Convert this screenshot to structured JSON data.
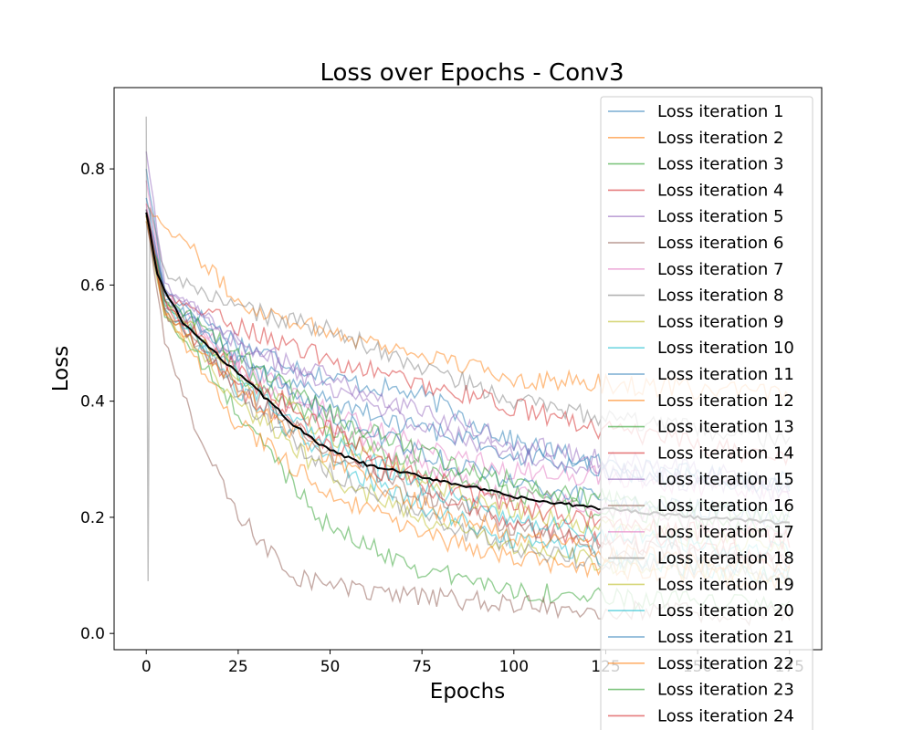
{
  "chart_data": {
    "type": "line",
    "title": "Loss over Epochs - Conv3",
    "xlabel": "Epochs",
    "ylabel": "Loss",
    "xlim": [
      -8.75,
      183.75
    ],
    "ylim": [
      -0.028,
      0.94
    ],
    "xticks": [
      0,
      25,
      50,
      75,
      100,
      125,
      150,
      175
    ],
    "yticks": [
      0.0,
      0.2,
      0.4,
      0.6,
      0.8
    ],
    "epochs": 175,
    "legend_position": "top-right",
    "grid": false,
    "series": [
      {
        "name": "Loss iteration 1",
        "color": "#1f77b4",
        "values": [
          [
            0,
            0.8
          ],
          [
            5,
            0.59
          ],
          [
            25,
            0.5
          ],
          [
            50,
            0.44
          ],
          [
            75,
            0.41
          ],
          [
            100,
            0.33
          ],
          [
            125,
            0.29
          ],
          [
            175,
            0.26
          ]
        ]
      },
      {
        "name": "Loss iteration 2",
        "color": "#ff7f0e",
        "values": [
          [
            0,
            0.74
          ],
          [
            5,
            0.7
          ],
          [
            10,
            0.68
          ],
          [
            25,
            0.57
          ],
          [
            50,
            0.52
          ],
          [
            75,
            0.48
          ],
          [
            100,
            0.44
          ],
          [
            125,
            0.43
          ],
          [
            175,
            0.41
          ]
        ]
      },
      {
        "name": "Loss iteration 3",
        "color": "#2ca02c",
        "values": [
          [
            0,
            0.72
          ],
          [
            5,
            0.55
          ],
          [
            25,
            0.38
          ],
          [
            50,
            0.18
          ],
          [
            75,
            0.11
          ],
          [
            100,
            0.075
          ],
          [
            125,
            0.06
          ],
          [
            175,
            0.05
          ]
        ]
      },
      {
        "name": "Loss iteration 4",
        "color": "#d62728",
        "values": [
          [
            0,
            0.72
          ],
          [
            5,
            0.58
          ],
          [
            25,
            0.53
          ],
          [
            50,
            0.47
          ],
          [
            75,
            0.43
          ],
          [
            100,
            0.39
          ],
          [
            125,
            0.35
          ],
          [
            175,
            0.3
          ]
        ]
      },
      {
        "name": "Loss iteration 5",
        "color": "#9467bd",
        "values": [
          [
            0,
            0.83
          ],
          [
            5,
            0.6
          ],
          [
            25,
            0.5
          ],
          [
            50,
            0.44
          ],
          [
            75,
            0.38
          ],
          [
            100,
            0.33
          ],
          [
            125,
            0.3
          ],
          [
            175,
            0.26
          ]
        ]
      },
      {
        "name": "Loss iteration 6",
        "color": "#8c564b",
        "values": [
          [
            0,
            0.72
          ],
          [
            5,
            0.5
          ],
          [
            15,
            0.33
          ],
          [
            25,
            0.2
          ],
          [
            40,
            0.1
          ],
          [
            60,
            0.07
          ],
          [
            100,
            0.05
          ],
          [
            125,
            0.04
          ],
          [
            175,
            0.03
          ]
        ]
      },
      {
        "name": "Loss iteration 7",
        "color": "#e377c2",
        "values": [
          [
            0,
            0.78
          ],
          [
            5,
            0.58
          ],
          [
            25,
            0.47
          ],
          [
            50,
            0.38
          ],
          [
            75,
            0.32
          ],
          [
            100,
            0.28
          ],
          [
            125,
            0.27
          ],
          [
            175,
            0.24
          ]
        ]
      },
      {
        "name": "Loss iteration 8",
        "color": "#7f7f7f",
        "values": [
          [
            0,
            0.89
          ],
          [
            0.5,
            0.09
          ],
          [
            1,
            0.73
          ],
          [
            5,
            0.62
          ],
          [
            25,
            0.56
          ],
          [
            50,
            0.52
          ],
          [
            75,
            0.46
          ],
          [
            100,
            0.4
          ],
          [
            125,
            0.37
          ],
          [
            175,
            0.33
          ]
        ]
      },
      {
        "name": "Loss iteration 9",
        "color": "#bcbd22",
        "values": [
          [
            0,
            0.71
          ],
          [
            5,
            0.55
          ],
          [
            25,
            0.4
          ],
          [
            50,
            0.27
          ],
          [
            75,
            0.2
          ],
          [
            100,
            0.15
          ],
          [
            125,
            0.12
          ],
          [
            175,
            0.1
          ]
        ]
      },
      {
        "name": "Loss iteration 10",
        "color": "#17becf",
        "values": [
          [
            0,
            0.73
          ],
          [
            5,
            0.56
          ],
          [
            25,
            0.42
          ],
          [
            50,
            0.3
          ],
          [
            75,
            0.22
          ],
          [
            100,
            0.16
          ],
          [
            125,
            0.13
          ],
          [
            175,
            0.1
          ]
        ]
      },
      {
        "name": "Loss iteration 11",
        "color": "#1f77b4",
        "values": [
          [
            0,
            0.75
          ],
          [
            5,
            0.58
          ],
          [
            25,
            0.47
          ],
          [
            50,
            0.4
          ],
          [
            75,
            0.35
          ],
          [
            100,
            0.31
          ],
          [
            125,
            0.28
          ],
          [
            175,
            0.25
          ]
        ]
      },
      {
        "name": "Loss iteration 12",
        "color": "#ff7f0e",
        "values": [
          [
            0,
            0.72
          ],
          [
            5,
            0.55
          ],
          [
            25,
            0.36
          ],
          [
            50,
            0.24
          ],
          [
            75,
            0.17
          ],
          [
            100,
            0.13
          ],
          [
            125,
            0.11
          ],
          [
            175,
            0.09
          ]
        ]
      },
      {
        "name": "Loss iteration 13",
        "color": "#2ca02c",
        "values": [
          [
            0,
            0.72
          ],
          [
            5,
            0.57
          ],
          [
            25,
            0.45
          ],
          [
            50,
            0.35
          ],
          [
            75,
            0.28
          ],
          [
            100,
            0.24
          ],
          [
            125,
            0.21
          ],
          [
            175,
            0.18
          ]
        ]
      },
      {
        "name": "Loss iteration 14",
        "color": "#d62728",
        "values": [
          [
            0,
            0.72
          ],
          [
            5,
            0.56
          ],
          [
            25,
            0.42
          ],
          [
            50,
            0.32
          ],
          [
            75,
            0.25
          ],
          [
            100,
            0.19
          ],
          [
            125,
            0.16
          ],
          [
            175,
            0.13
          ]
        ]
      },
      {
        "name": "Loss iteration 15",
        "color": "#9467bd",
        "values": [
          [
            0,
            0.73
          ],
          [
            5,
            0.6
          ],
          [
            25,
            0.5
          ],
          [
            50,
            0.42
          ],
          [
            75,
            0.36
          ],
          [
            100,
            0.31
          ],
          [
            125,
            0.28
          ],
          [
            175,
            0.24
          ]
        ]
      },
      {
        "name": "Loss iteration 16",
        "color": "#8c564b",
        "values": [
          [
            0,
            0.71
          ],
          [
            5,
            0.55
          ],
          [
            25,
            0.43
          ],
          [
            50,
            0.31
          ],
          [
            75,
            0.24
          ],
          [
            100,
            0.18
          ],
          [
            125,
            0.15
          ],
          [
            175,
            0.12
          ]
        ]
      },
      {
        "name": "Loss iteration 17",
        "color": "#e377c2",
        "values": [
          [
            0,
            0.74
          ],
          [
            5,
            0.57
          ],
          [
            25,
            0.46
          ],
          [
            50,
            0.36
          ],
          [
            75,
            0.29
          ],
          [
            100,
            0.24
          ],
          [
            125,
            0.21
          ],
          [
            175,
            0.18
          ]
        ]
      },
      {
        "name": "Loss iteration 18",
        "color": "#7f7f7f",
        "values": [
          [
            0,
            0.72
          ],
          [
            5,
            0.56
          ],
          [
            25,
            0.41
          ],
          [
            50,
            0.28
          ],
          [
            75,
            0.2
          ],
          [
            100,
            0.15
          ],
          [
            125,
            0.12
          ],
          [
            175,
            0.1
          ]
        ]
      },
      {
        "name": "Loss iteration 19",
        "color": "#bcbd22",
        "values": [
          [
            0,
            0.72
          ],
          [
            5,
            0.57
          ],
          [
            25,
            0.45
          ],
          [
            50,
            0.34
          ],
          [
            75,
            0.26
          ],
          [
            100,
            0.21
          ],
          [
            125,
            0.18
          ],
          [
            175,
            0.15
          ]
        ]
      },
      {
        "name": "Loss iteration 20",
        "color": "#17becf",
        "values": [
          [
            0,
            0.73
          ],
          [
            5,
            0.56
          ],
          [
            25,
            0.44
          ],
          [
            50,
            0.33
          ],
          [
            75,
            0.25
          ],
          [
            100,
            0.2
          ],
          [
            125,
            0.17
          ],
          [
            175,
            0.14
          ]
        ]
      },
      {
        "name": "Loss iteration 21",
        "color": "#1f77b4",
        "values": [
          [
            0,
            0.73
          ],
          [
            5,
            0.58
          ],
          [
            25,
            0.47
          ],
          [
            50,
            0.38
          ],
          [
            75,
            0.31
          ],
          [
            100,
            0.26
          ],
          [
            125,
            0.23
          ],
          [
            175,
            0.2
          ]
        ]
      },
      {
        "name": "Loss iteration 22",
        "color": "#ff7f0e",
        "values": [
          [
            0,
            0.72
          ],
          [
            5,
            0.55
          ],
          [
            25,
            0.42
          ],
          [
            50,
            0.3
          ],
          [
            75,
            0.22
          ],
          [
            100,
            0.17
          ],
          [
            125,
            0.14
          ],
          [
            175,
            0.11
          ]
        ]
      },
      {
        "name": "Loss iteration 23",
        "color": "#2ca02c",
        "values": [
          [
            0,
            0.72
          ],
          [
            5,
            0.58
          ],
          [
            25,
            0.48
          ],
          [
            50,
            0.38
          ],
          [
            75,
            0.31
          ],
          [
            100,
            0.26
          ],
          [
            125,
            0.23
          ],
          [
            175,
            0.2
          ]
        ]
      },
      {
        "name": "Loss iteration 24",
        "color": "#d62728",
        "values": [
          [
            0,
            0.73
          ],
          [
            5,
            0.57
          ],
          [
            25,
            0.45
          ],
          [
            50,
            0.35
          ],
          [
            75,
            0.27
          ],
          [
            100,
            0.22
          ],
          [
            125,
            0.19
          ],
          [
            175,
            0.16
          ]
        ]
      }
    ],
    "mean": {
      "color": "#000000",
      "values": [
        [
          0,
          0.725
        ],
        [
          3,
          0.62
        ],
        [
          5,
          0.59
        ],
        [
          10,
          0.535
        ],
        [
          15,
          0.505
        ],
        [
          20,
          0.475
        ],
        [
          25,
          0.45
        ],
        [
          30,
          0.42
        ],
        [
          35,
          0.39
        ],
        [
          40,
          0.36
        ],
        [
          45,
          0.335
        ],
        [
          50,
          0.315
        ],
        [
          60,
          0.29
        ],
        [
          75,
          0.27
        ],
        [
          90,
          0.25
        ],
        [
          100,
          0.235
        ],
        [
          110,
          0.225
        ],
        [
          125,
          0.215
        ],
        [
          150,
          0.2
        ],
        [
          175,
          0.19
        ]
      ]
    }
  }
}
